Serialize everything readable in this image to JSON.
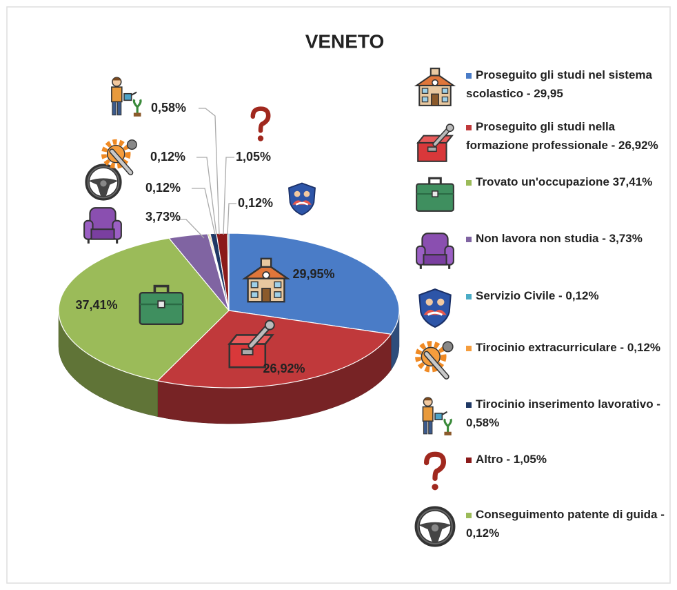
{
  "chart_data": {
    "type": "pie",
    "title": "VENETO",
    "categories": [
      "Proseguito gli studi nel sistema scolastico - 29,95",
      "Proseguito gli studi nella formazione professionale - 26,92%",
      "Trovato un'occupazione 37,41%",
      "Non lavora non studia - 3,73%",
      "Conseguimento patente di guida - 0,12%",
      "Tirocinio extracurriculare - 0,12%",
      "Tirocinio inserimento lavorativo - 0,58%",
      "Altro - 1,05%",
      "Servizio Civile - 0,12%"
    ],
    "values": [
      29.95,
      26.92,
      37.41,
      3.73,
      0.12,
      0.12,
      0.58,
      1.05,
      0.12
    ],
    "value_labels": [
      "29,95%",
      "26,92%",
      "37,41%",
      "3,73%",
      "0,12%",
      "0,12%",
      "0,58%",
      "1,05%",
      "0,12%"
    ],
    "colors": [
      "#4a7cc7",
      "#c0393b",
      "#9bbb59",
      "#8064a2",
      "#9bbb59",
      "#f59d3d",
      "#1f3864",
      "#8b1a1a",
      "#4bacc6"
    ]
  }
}
